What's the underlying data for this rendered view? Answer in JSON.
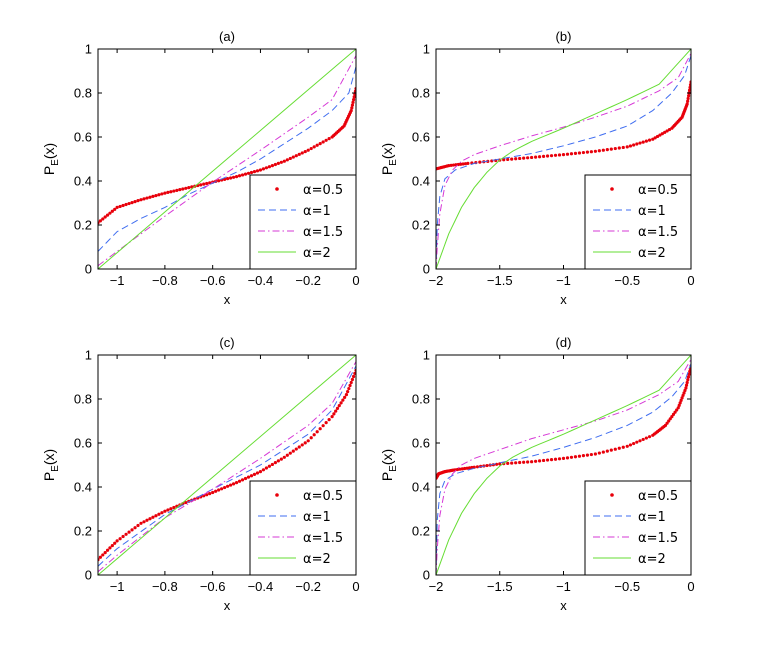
{
  "chart_data": [
    {
      "type": "line",
      "title": "(a)",
      "xlabel": "x",
      "ylabel": "P",
      "ylabel_sub": "E",
      "ylabel_arg": "(x)",
      "xlim": [
        -1.08,
        0
      ],
      "ylim": [
        0,
        1
      ],
      "xticks": [
        -1,
        -0.8,
        -0.6,
        -0.4,
        -0.2,
        0
      ],
      "xtick_labels": [
        "−1",
        "−0.8",
        "−0.6",
        "−0.4",
        "−0.2",
        "0"
      ],
      "yticks": [
        0,
        0.2,
        0.4,
        0.6,
        0.8,
        1
      ],
      "ytick_labels": [
        "0",
        "0.2",
        "0.4",
        "0.6",
        "0.8",
        "1"
      ],
      "legend_position": "bottom-right",
      "series": [
        {
          "name": "α=0.5",
          "style": "dots",
          "color": "#e8000b",
          "x": [
            -1.08,
            -1.0,
            -0.9,
            -0.8,
            -0.7,
            -0.6,
            -0.5,
            -0.4,
            -0.3,
            -0.2,
            -0.1,
            -0.05,
            -0.02,
            0
          ],
          "y": [
            0.21,
            0.28,
            0.315,
            0.345,
            0.37,
            0.395,
            0.42,
            0.45,
            0.49,
            0.54,
            0.6,
            0.65,
            0.72,
            0.82
          ]
        },
        {
          "name": "α=1",
          "style": "dashed",
          "color": "#3f6df0",
          "x": [
            -1.08,
            -1.0,
            -0.9,
            -0.8,
            -0.7,
            -0.6,
            -0.5,
            -0.4,
            -0.3,
            -0.2,
            -0.1,
            -0.03,
            0
          ],
          "y": [
            0.08,
            0.17,
            0.23,
            0.28,
            0.34,
            0.39,
            0.44,
            0.5,
            0.57,
            0.64,
            0.72,
            0.8,
            0.92
          ]
        },
        {
          "name": "α=1.5",
          "style": "dashdot",
          "color": "#d638d6",
          "x": [
            -1.08,
            -1.0,
            -0.8,
            -0.6,
            -0.4,
            -0.2,
            -0.1,
            0
          ],
          "y": [
            0.015,
            0.08,
            0.24,
            0.395,
            0.54,
            0.69,
            0.77,
            0.97
          ]
        },
        {
          "name": "α=2",
          "style": "solid",
          "color": "#66dd33",
          "x": [
            -1.08,
            0
          ],
          "y": [
            0,
            1
          ]
        }
      ]
    },
    {
      "type": "line",
      "title": "(b)",
      "xlabel": "x",
      "ylabel": "P",
      "ylabel_sub": "E",
      "ylabel_arg": "(x)",
      "xlim": [
        -2,
        0
      ],
      "ylim": [
        0,
        1
      ],
      "xticks": [
        -2,
        -1.5,
        -1,
        -0.5,
        0
      ],
      "xtick_labels": [
        "−2",
        "−1.5",
        "−1",
        "−0.5",
        "0"
      ],
      "yticks": [
        0,
        0.2,
        0.4,
        0.6,
        0.8,
        1
      ],
      "ytick_labels": [
        "0",
        "0.2",
        "0.4",
        "0.6",
        "0.8",
        "1"
      ],
      "legend_position": "bottom-right",
      "series": [
        {
          "name": "α=0.5",
          "style": "dots",
          "color": "#e8000b",
          "x": [
            -2.0,
            -1.9,
            -1.75,
            -1.5,
            -1.25,
            -1.0,
            -0.75,
            -0.5,
            -0.3,
            -0.15,
            -0.07,
            -0.03,
            0
          ],
          "y": [
            0.455,
            0.47,
            0.48,
            0.495,
            0.507,
            0.52,
            0.535,
            0.555,
            0.59,
            0.64,
            0.69,
            0.75,
            0.85
          ]
        },
        {
          "name": "α=1",
          "style": "dashed",
          "color": "#3f6df0",
          "x": [
            -2.0,
            -1.99,
            -1.97,
            -1.93,
            -1.85,
            -1.7,
            -1.5,
            -1.25,
            -1.0,
            -0.75,
            -0.5,
            -0.3,
            -0.15,
            -0.05,
            0
          ],
          "y": [
            0.0,
            0.2,
            0.33,
            0.41,
            0.45,
            0.48,
            0.5,
            0.525,
            0.56,
            0.6,
            0.65,
            0.72,
            0.8,
            0.88,
            0.97
          ]
        },
        {
          "name": "α=1.5",
          "style": "dashdot",
          "color": "#d638d6",
          "x": [
            -2.0,
            -1.99,
            -1.97,
            -1.93,
            -1.87,
            -1.8,
            -1.7,
            -1.5,
            -1.25,
            -1.0,
            -0.75,
            -0.5,
            -0.25,
            -0.1,
            0
          ],
          "y": [
            0.0,
            0.1,
            0.25,
            0.38,
            0.45,
            0.49,
            0.52,
            0.56,
            0.605,
            0.645,
            0.69,
            0.74,
            0.81,
            0.87,
            0.98
          ]
        },
        {
          "name": "α=2",
          "style": "solid",
          "color": "#66dd33",
          "x": [
            -2.0,
            -1.95,
            -1.9,
            -1.8,
            -1.7,
            -1.6,
            -1.5,
            -1.4,
            -1.25,
            -1.0,
            -0.75,
            -0.5,
            -0.25,
            0
          ],
          "y": [
            0.0,
            0.08,
            0.16,
            0.28,
            0.37,
            0.44,
            0.495,
            0.535,
            0.58,
            0.64,
            0.705,
            0.77,
            0.84,
            1.0
          ]
        }
      ]
    },
    {
      "type": "line",
      "title": "(c)",
      "xlabel": "x",
      "ylabel": "P",
      "ylabel_sub": "E",
      "ylabel_arg": "(x)",
      "xlim": [
        -1.08,
        0
      ],
      "ylim": [
        0,
        1
      ],
      "xticks": [
        -1,
        -0.8,
        -0.6,
        -0.4,
        -0.2,
        0
      ],
      "xtick_labels": [
        "−1",
        "−0.8",
        "−0.6",
        "−0.4",
        "−0.2",
        "0"
      ],
      "yticks": [
        0,
        0.2,
        0.4,
        0.6,
        0.8,
        1
      ],
      "ytick_labels": [
        "0",
        "0.2",
        "0.4",
        "0.6",
        "0.8",
        "1"
      ],
      "legend_position": "bottom-right",
      "series": [
        {
          "name": "α=0.5",
          "style": "dots",
          "color": "#e8000b",
          "x": [
            -1.08,
            -1.0,
            -0.9,
            -0.8,
            -0.7,
            -0.6,
            -0.5,
            -0.4,
            -0.3,
            -0.2,
            -0.1,
            -0.04,
            0
          ],
          "y": [
            0.07,
            0.155,
            0.235,
            0.29,
            0.335,
            0.375,
            0.42,
            0.47,
            0.535,
            0.61,
            0.72,
            0.82,
            0.93
          ]
        },
        {
          "name": "α=1",
          "style": "dashed",
          "color": "#3f6df0",
          "x": [
            -1.08,
            -1.0,
            -0.8,
            -0.6,
            -0.4,
            -0.2,
            -0.1,
            0
          ],
          "y": [
            0.04,
            0.12,
            0.275,
            0.39,
            0.5,
            0.64,
            0.75,
            0.95
          ]
        },
        {
          "name": "α=1.5",
          "style": "dashdot",
          "color": "#d638d6",
          "x": [
            -1.08,
            -1.0,
            -0.8,
            -0.6,
            -0.4,
            -0.2,
            -0.1,
            0
          ],
          "y": [
            0.015,
            0.09,
            0.26,
            0.39,
            0.53,
            0.68,
            0.78,
            0.97
          ]
        },
        {
          "name": "α=2",
          "style": "solid",
          "color": "#66dd33",
          "x": [
            -1.08,
            0
          ],
          "y": [
            0,
            1
          ]
        }
      ]
    },
    {
      "type": "line",
      "title": "(d)",
      "xlabel": "x",
      "ylabel": "P",
      "ylabel_sub": "E",
      "ylabel_arg": "(x)",
      "xlim": [
        -2,
        0
      ],
      "ylim": [
        0,
        1
      ],
      "xticks": [
        -2,
        -1.5,
        -1,
        -0.5,
        0
      ],
      "xtick_labels": [
        "−2",
        "−1.5",
        "−1",
        "−0.5",
        "0"
      ],
      "yticks": [
        0,
        0.2,
        0.4,
        0.6,
        0.8,
        1
      ],
      "ytick_labels": [
        "0",
        "0.2",
        "0.4",
        "0.6",
        "0.8",
        "1"
      ],
      "legend_position": "bottom-right",
      "series": [
        {
          "name": "α=0.5",
          "style": "dots",
          "color": "#e8000b",
          "x": [
            -2.0,
            -1.98,
            -1.93,
            -1.85,
            -1.7,
            -1.5,
            -1.25,
            -1.0,
            -0.75,
            -0.5,
            -0.3,
            -0.2,
            -0.1,
            -0.04,
            0
          ],
          "y": [
            0.44,
            0.46,
            0.47,
            0.478,
            0.49,
            0.505,
            0.515,
            0.53,
            0.55,
            0.585,
            0.635,
            0.68,
            0.76,
            0.85,
            0.95
          ]
        },
        {
          "name": "α=1",
          "style": "dashed",
          "color": "#3f6df0",
          "x": [
            -2.0,
            -1.99,
            -1.97,
            -1.93,
            -1.85,
            -1.7,
            -1.5,
            -1.25,
            -1.0,
            -0.75,
            -0.5,
            -0.3,
            -0.15,
            -0.05,
            0
          ],
          "y": [
            0.0,
            0.25,
            0.37,
            0.43,
            0.46,
            0.485,
            0.51,
            0.54,
            0.58,
            0.625,
            0.68,
            0.74,
            0.81,
            0.88,
            0.96
          ]
        },
        {
          "name": "α=1.5",
          "style": "dashdot",
          "color": "#d638d6",
          "x": [
            -2.0,
            -1.99,
            -1.97,
            -1.93,
            -1.87,
            -1.8,
            -1.7,
            -1.5,
            -1.25,
            -1.0,
            -0.75,
            -0.5,
            -0.25,
            -0.1,
            0
          ],
          "y": [
            0.0,
            0.12,
            0.27,
            0.39,
            0.46,
            0.5,
            0.53,
            0.57,
            0.62,
            0.66,
            0.7,
            0.75,
            0.82,
            0.88,
            0.98
          ]
        },
        {
          "name": "α=2",
          "style": "solid",
          "color": "#66dd33",
          "x": [
            -2.0,
            -1.95,
            -1.9,
            -1.8,
            -1.7,
            -1.6,
            -1.5,
            -1.4,
            -1.25,
            -1.0,
            -0.75,
            -0.5,
            -0.25,
            0
          ],
          "y": [
            0.0,
            0.08,
            0.16,
            0.28,
            0.37,
            0.44,
            0.495,
            0.535,
            0.58,
            0.64,
            0.705,
            0.77,
            0.84,
            1.0
          ]
        }
      ]
    }
  ]
}
